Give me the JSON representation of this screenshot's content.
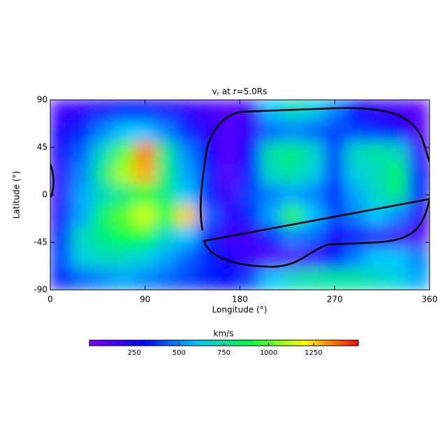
{
  "chart_data": {
    "type": "heatmap",
    "title_symbol": "v",
    "title_subscript": "r",
    "title_rest": "at r=5.0Rs",
    "xlabel": "Longitude (°)",
    "ylabel": "Latitude (°)",
    "colorbar_label": "km/s",
    "xlim": [
      0,
      360
    ],
    "xticks": [
      0,
      90,
      180,
      270,
      360
    ],
    "ylim": [
      -90,
      90
    ],
    "yticks": [
      -90,
      -45,
      0,
      45,
      90
    ],
    "clim": [
      0,
      1500
    ],
    "cticks": [
      250,
      500,
      750,
      1000,
      1250
    ],
    "colormap": [
      "#8000ff",
      "#0000ff",
      "#00c8ff",
      "#00ff40",
      "#ffff00",
      "#ff0000"
    ],
    "x": [
      10,
      30,
      50,
      70,
      90,
      110,
      130,
      150,
      170,
      190,
      210,
      230,
      250,
      270,
      290,
      310,
      330,
      350
    ],
    "y": [
      80,
      60,
      40,
      20,
      0,
      -20,
      -40,
      -60,
      -80
    ],
    "z": [
      [
        150,
        200,
        250,
        300,
        300,
        250,
        200,
        150,
        100,
        150,
        600,
        700,
        650,
        500,
        300,
        200,
        150,
        100
      ],
      [
        250,
        350,
        500,
        600,
        600,
        500,
        350,
        200,
        100,
        200,
        450,
        500,
        450,
        400,
        400,
        350,
        300,
        100
      ],
      [
        250,
        450,
        700,
        1000,
        1350,
        800,
        500,
        300,
        100,
        300,
        750,
        800,
        700,
        400,
        700,
        750,
        700,
        200
      ],
      [
        200,
        500,
        800,
        1100,
        1300,
        800,
        550,
        350,
        100,
        350,
        700,
        750,
        650,
        400,
        650,
        700,
        850,
        300
      ],
      [
        200,
        550,
        700,
        800,
        900,
        800,
        600,
        350,
        150,
        400,
        500,
        550,
        500,
        350,
        550,
        700,
        800,
        350
      ],
      [
        250,
        550,
        850,
        1000,
        1150,
        900,
        1250,
        450,
        200,
        350,
        550,
        950,
        600,
        400,
        500,
        600,
        500,
        200
      ],
      [
        350,
        700,
        800,
        900,
        900,
        700,
        600,
        350,
        150,
        150,
        350,
        500,
        450,
        250,
        250,
        200,
        150,
        100
      ],
      [
        400,
        650,
        700,
        700,
        650,
        550,
        450,
        350,
        250,
        150,
        100,
        100,
        150,
        300,
        500,
        600,
        600,
        500
      ],
      [
        350,
        450,
        500,
        550,
        500,
        450,
        400,
        350,
        300,
        400,
        600,
        700,
        750,
        750,
        750,
        700,
        650,
        550
      ]
    ]
  }
}
